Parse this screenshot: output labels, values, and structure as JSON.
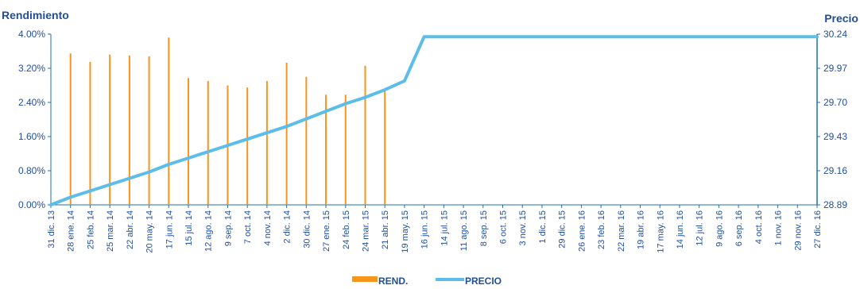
{
  "chart_data": {
    "type": "bar",
    "y_left_label": "Rendimiento",
    "y_right_label": "Precio",
    "y_left_ticks": [
      "0.00%",
      "0.80%",
      "1.60%",
      "2.40%",
      "3.20%",
      "4.00%"
    ],
    "y_right_ticks": [
      "28.89",
      "29.16",
      "29.43",
      "29.70",
      "29.97",
      "30.24"
    ],
    "ylim_left": [
      0,
      4.0
    ],
    "ylim_right": [
      28.89,
      30.24
    ],
    "x_labels": [
      "31 dic. 13",
      "28 ene. 14",
      "25 feb. 14",
      "25 mar. 14",
      "22 abr. 14",
      "20 may. 14",
      "17 jun. 14",
      "15 jul. 14",
      "12 ago. 14",
      "9 sep. 14",
      "7 oct. 14",
      "4 nov. 14",
      "2 dic. 14",
      "30 dic. 14",
      "27 ene. 15",
      "24 feb. 15",
      "24 mar. 15",
      "21 abr. 15",
      "19 may. 15",
      "16 jun. 15",
      "14 jul. 15",
      "11 ago. 15",
      "8 sep. 15",
      "6 oct. 15",
      "3 nov. 15",
      "1 dic. 15",
      "29 dic. 15",
      "26 ene. 16",
      "23 feb. 16",
      "22 mar. 16",
      "19 abr. 16",
      "17 may. 16",
      "14 jun. 16",
      "12 jul. 16",
      "9 ago. 16",
      "6 sep. 16",
      "4 oct. 16",
      "1 nov. 16",
      "29 nov. 16",
      "27 dic. 16"
    ],
    "series": [
      {
        "name": "REND.",
        "color": "#f7941d",
        "type": "bar",
        "points": [
          {
            "x": "28 ene. 14",
            "value": 3.55
          },
          {
            "x": "25 feb. 14",
            "value": 3.35
          },
          {
            "x": "25 mar. 14",
            "value": 3.52
          },
          {
            "x": "22 abr. 14",
            "value": 3.5
          },
          {
            "x": "20 may. 14",
            "value": 3.48
          },
          {
            "x": "17 jun. 14",
            "value": 3.92
          },
          {
            "x": "15 jul. 14",
            "value": 2.97
          },
          {
            "x": "12 ago. 14",
            "value": 2.9
          },
          {
            "x": "9 sep. 14",
            "value": 2.8
          },
          {
            "x": "7 oct. 14",
            "value": 2.75
          },
          {
            "x": "4 nov. 14",
            "value": 2.9
          },
          {
            "x": "2 dic. 14",
            "value": 3.33
          },
          {
            "x": "30 dic. 14",
            "value": 3.0
          },
          {
            "x": "27 ene. 15",
            "value": 2.58
          },
          {
            "x": "24 feb. 15",
            "value": 2.58
          },
          {
            "x": "24 mar. 15",
            "value": 3.26
          },
          {
            "x": "21 abr. 15",
            "value": 2.73
          }
        ]
      },
      {
        "name": "PRECIO",
        "color": "#5bbde8",
        "type": "line",
        "points": [
          {
            "x": "31 dic. 13",
            "value": 28.89
          },
          {
            "x": "28 ene. 14",
            "value": 28.95
          },
          {
            "x": "25 feb. 14",
            "value": 29.0
          },
          {
            "x": "25 mar. 14",
            "value": 29.05
          },
          {
            "x": "22 abr. 14",
            "value": 29.1
          },
          {
            "x": "20 may. 14",
            "value": 29.15
          },
          {
            "x": "17 jun. 14",
            "value": 29.21
          },
          {
            "x": "15 jul. 14",
            "value": 29.26
          },
          {
            "x": "12 ago. 14",
            "value": 29.31
          },
          {
            "x": "9 sep. 14",
            "value": 29.36
          },
          {
            "x": "7 oct. 14",
            "value": 29.41
          },
          {
            "x": "4 nov. 14",
            "value": 29.46
          },
          {
            "x": "2 dic. 14",
            "value": 29.51
          },
          {
            "x": "30 dic. 14",
            "value": 29.57
          },
          {
            "x": "27 ene. 15",
            "value": 29.63
          },
          {
            "x": "24 feb. 15",
            "value": 29.69
          },
          {
            "x": "24 mar. 15",
            "value": 29.74
          },
          {
            "x": "21 abr. 15",
            "value": 29.8
          },
          {
            "x": "19 may. 15",
            "value": 29.87
          },
          {
            "x": "16 jun. 15",
            "value": 30.22
          },
          {
            "x": "27 dic. 16",
            "value": 30.22
          }
        ]
      }
    ],
    "legend": {
      "position": "bottom",
      "items": [
        "REND.",
        "PRECIO"
      ]
    },
    "grid": false
  }
}
